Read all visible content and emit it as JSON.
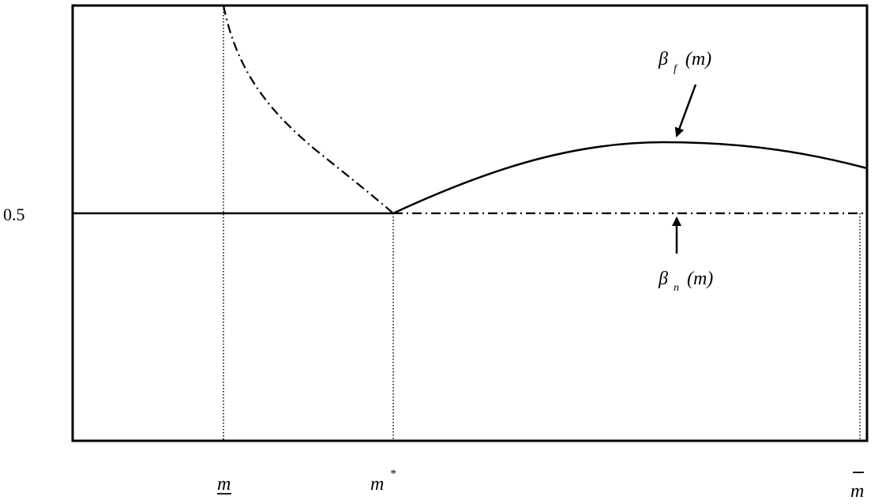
{
  "y_tick_label": "0.5",
  "x_labels": {
    "m_lower": "m",
    "m_star_base": "m",
    "m_star_sup": "*",
    "m_upper": "m"
  },
  "curve_labels": {
    "beta_f": {
      "symbol": "β",
      "subscript": "f",
      "argument": "(m)"
    },
    "beta_n": {
      "symbol": "β",
      "subscript": "n",
      "argument": "(m)"
    }
  },
  "colors": {
    "stroke": "#000000",
    "background": "#ffffff"
  }
}
